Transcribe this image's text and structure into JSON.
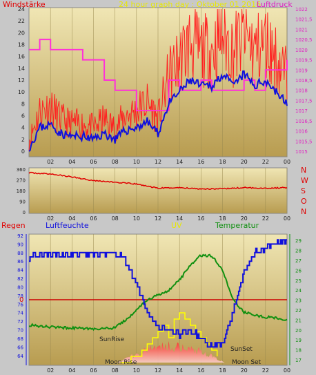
{
  "panel1": {
    "title": "24 hour graph day : Oktober 01 2016",
    "left_label": "Windstärke",
    "right_label": "Luftdruck",
    "y_left_ticks": [
      "0",
      "2",
      "4",
      "6",
      "8",
      "10",
      "12",
      "14",
      "16",
      "18",
      "20",
      "22",
      "24"
    ],
    "y_right_ticks": [
      "1015",
      "1015,5",
      "1016",
      "1016,5",
      "1017",
      "1017,5",
      "1018",
      "1018,5",
      "1019",
      "1019,5",
      "1020",
      "1020,5",
      "1021",
      "1021,5",
      "1022"
    ],
    "x_ticks": [
      "02",
      "04",
      "06",
      "08",
      "10",
      "12",
      "14",
      "16",
      "18",
      "20",
      "22",
      "00"
    ]
  },
  "panel2": {
    "y_ticks": [
      "0",
      "90",
      "180",
      "270",
      "360"
    ],
    "compass": [
      "N",
      "W",
      "S",
      "O",
      "N"
    ],
    "x_ticks": [
      "02",
      "04",
      "06",
      "08",
      "10",
      "12",
      "14",
      "16",
      "18",
      "20",
      "22",
      "00"
    ]
  },
  "panel3": {
    "label_regen": "Regen",
    "label_luftfeuchte": "Luftfeuchte",
    "label_uv": "UV",
    "label_temperatur": "Temperatur",
    "y_left_ticks": [
      "64",
      "66",
      "68",
      "70",
      "72",
      "74",
      "76",
      "78",
      "80",
      "82",
      "84",
      "86",
      "88",
      "90",
      "92"
    ],
    "y_right_ticks": [
      "17",
      "18",
      "19",
      "20",
      "21",
      "22",
      "23",
      "24",
      "25",
      "26",
      "27",
      "28",
      "29"
    ],
    "rain_value": "0",
    "sunrise": "SunRise",
    "sunset": "SunSet",
    "moonrise": "Moon Rise",
    "moonset": "Moon Set",
    "x_ticks": [
      "02",
      "04",
      "06",
      "08",
      "10",
      "12",
      "14",
      "16",
      "18",
      "20",
      "22",
      "00"
    ]
  },
  "colors": {
    "wind_gust": "#ff2020",
    "wind_avg": "#1010dd",
    "pressure": "#ff30d8",
    "direction": "#e00000",
    "humidity": "#1010dd",
    "temperature": "#109010",
    "uv": "#ffff00",
    "solar": "#ff4040",
    "title": "#e8e800"
  },
  "chart_data": [
    {
      "type": "line",
      "title": "24 hour graph day : Oktober 01 2016",
      "x_hours": [
        0,
        1,
        2,
        3,
        4,
        5,
        6,
        7,
        8,
        9,
        10,
        11,
        12,
        13,
        14,
        15,
        16,
        17,
        18,
        19,
        20,
        21,
        22,
        23,
        24
      ],
      "ylim_left": [
        0,
        24
      ],
      "ylim_right": [
        1015,
        1022
      ],
      "series": [
        {
          "name": "Windstärke",
          "axis": "left",
          "values": [
            0.5,
            4,
            4.5,
            3,
            2.5,
            2.5,
            2,
            3,
            2,
            3.5,
            4,
            5,
            3,
            8,
            10,
            12,
            11,
            11,
            13,
            11,
            13,
            11,
            12,
            10,
            8
          ]
        },
        {
          "name": "Luftdruck",
          "axis": "right",
          "values": [
            1020,
            1020.5,
            1020,
            1020,
            1020,
            1019.5,
            1019.5,
            1018.5,
            1018,
            1018,
            1017,
            1017,
            1017,
            1018.5,
            1018,
            1018,
            1018.5,
            1018,
            1018,
            1018,
            1018.5,
            1018,
            1019,
            1019,
            1019.5
          ]
        }
      ]
    },
    {
      "type": "line",
      "title": "",
      "x_hours": [
        0,
        2,
        4,
        6,
        8,
        10,
        12,
        14,
        16,
        18,
        20,
        22,
        24
      ],
      "ylim": [
        0,
        360
      ],
      "series": [
        {
          "name": "",
          "values": [
            330,
            320,
            295,
            265,
            250,
            235,
            200,
            205,
            195,
            195,
            205,
            200,
            205
          ]
        }
      ]
    },
    {
      "type": "line",
      "title": "",
      "x_hours": [
        0,
        2,
        4,
        6,
        8,
        9,
        10,
        11,
        12,
        13,
        14,
        15,
        16,
        17,
        18,
        19,
        20,
        21,
        22,
        23,
        24
      ],
      "ylim_left": [
        63,
        92
      ],
      "ylim_right": [
        17,
        29.5
      ],
      "series": [
        {
          "name": "Luftfeuchte",
          "axis": "left",
          "values": [
            87,
            87.5,
            87.5,
            88,
            88,
            86,
            81,
            74,
            71,
            70,
            69,
            70,
            68,
            66,
            67,
            74,
            84,
            88,
            89,
            90,
            91
          ]
        },
        {
          "name": "Temperatur",
          "axis": "right",
          "values": [
            20.5,
            20.3,
            20.2,
            20.1,
            20.2,
            21,
            22,
            23,
            23.5,
            24,
            25,
            26.5,
            27.5,
            27.5,
            26,
            23,
            21.8,
            21.5,
            21.3,
            21.2,
            21
          ]
        }
      ],
      "rain": 0
    }
  ]
}
